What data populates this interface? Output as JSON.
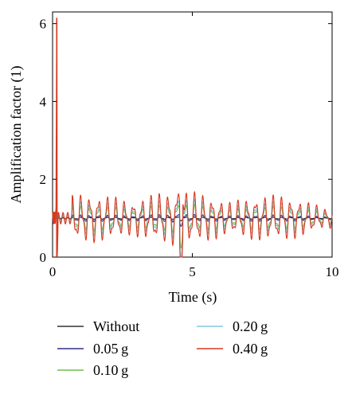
{
  "chart_data": {
    "type": "line",
    "xlabel": "Time (s)",
    "ylabel": "Amplification factor (1)",
    "xlim": [
      0,
      10
    ],
    "ylim": [
      0,
      6.3
    ],
    "xticks": [
      0,
      5,
      10
    ],
    "yticks": [
      0,
      2,
      4,
      6
    ],
    "legend_position": "below",
    "series": [
      {
        "name": "Without",
        "color": "#333333",
        "amp": 0.02,
        "spike": 0
      },
      {
        "name": "0.05 g",
        "color": "#2f2f8a",
        "amp": 0.06,
        "spike": 0.2
      },
      {
        "name": "0.10 g",
        "color": "#6fbf4a",
        "amp": 0.22,
        "spike": 0.6
      },
      {
        "name": "0.20 g",
        "color": "#7ec8d8",
        "amp": 0.3,
        "spike": 0.9
      },
      {
        "name": "0.40 g",
        "color": "#d9381e",
        "amp": 0.42,
        "spike": 5.15
      }
    ],
    "peak": {
      "x": 4.6,
      "y": 2.05
    },
    "initial_spike": {
      "x": 0.15,
      "y": 6.15
    }
  }
}
